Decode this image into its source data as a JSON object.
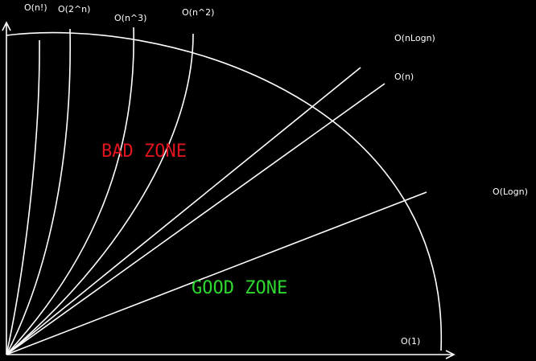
{
  "colors": {
    "background": "#000000",
    "lines": "#ffffff",
    "labels": "#ffffff",
    "bad_zone": "#e0141e",
    "good_zone": "#2ed82e"
  },
  "curves": {
    "factorial": "O(n!)",
    "exponential": "O(2^n)",
    "cubic": "O(n^3)",
    "quadratic": "O(n^2)",
    "nlogn": "O(nLogn)",
    "linear": "O(n)",
    "logn": "O(Logn)",
    "constant": "O(1)"
  },
  "zones": {
    "bad": "BAD ZONE",
    "good": "GOOD ZONE"
  }
}
